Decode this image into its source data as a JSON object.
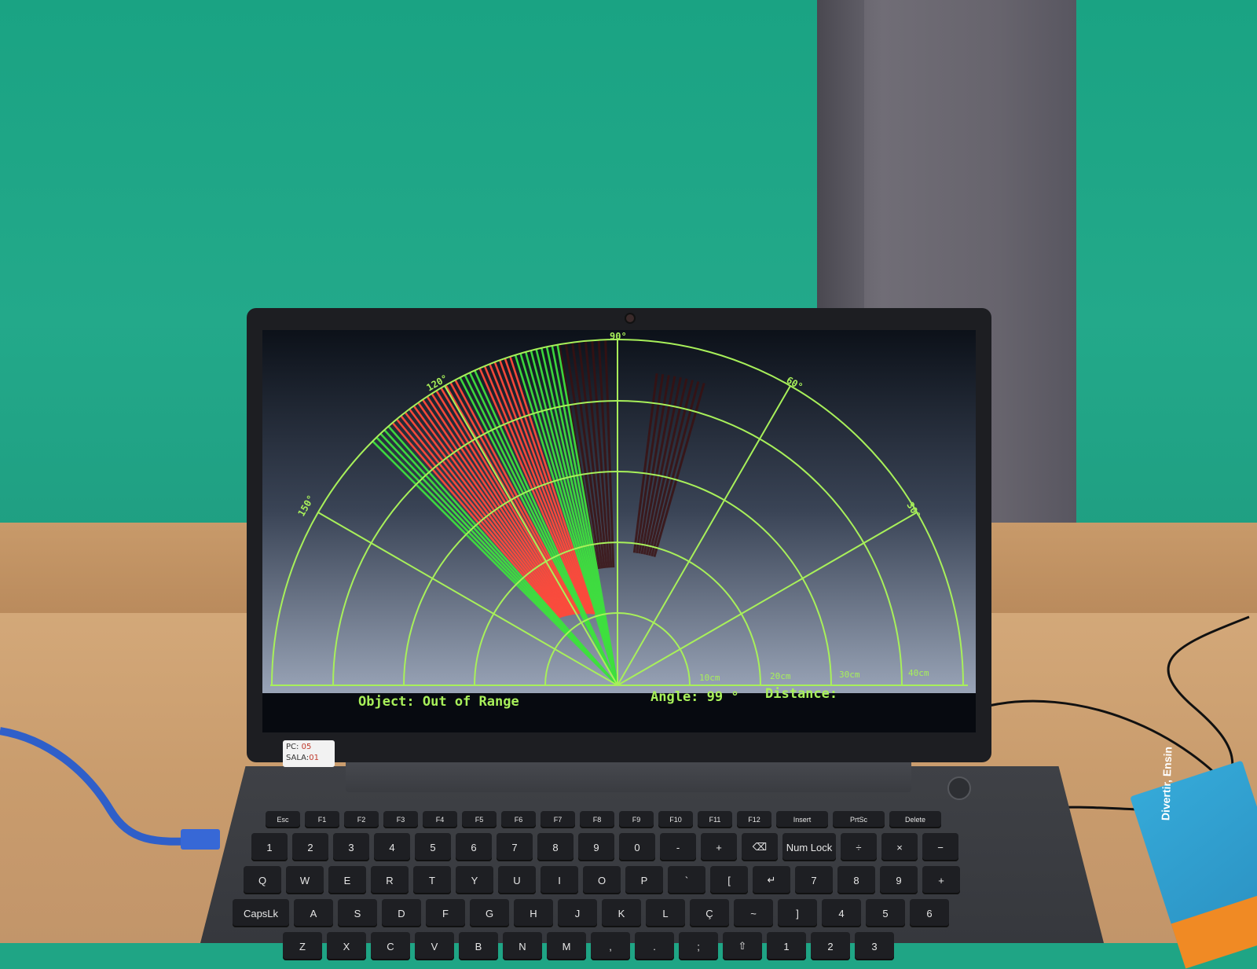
{
  "radar": {
    "angle_labels": [
      "150°",
      "120°",
      "90°",
      "60°",
      "30°"
    ],
    "distance_labels": [
      "10cm",
      "20cm",
      "30cm",
      "40cm"
    ],
    "object_label": "Object: Out of Range",
    "angle_readout": "Angle: 99 °",
    "distance_readout": "Distance:",
    "colors": {
      "grid": "#a8f05a",
      "sweep_green": "#3ee03e",
      "sweep_red": "#ff4a3a",
      "fade": "#3a1010",
      "background_top": "#0c1119",
      "background_bottom": "#aeb9cc"
    }
  },
  "sticker": {
    "pc_label": "PC:",
    "pc_value": "05",
    "room_label": "SALA:",
    "room_value": "01"
  },
  "keyboard": {
    "function_row": [
      "Esc",
      "F1",
      "F2",
      "F3",
      "F4",
      "F5",
      "F6",
      "F7",
      "F8",
      "F9",
      "F10",
      "F11",
      "F12",
      "Insert",
      "PrtSc",
      "Delete"
    ],
    "number_row": [
      "1",
      "2",
      "3",
      "4",
      "5",
      "6",
      "7",
      "8",
      "9",
      "0",
      "-",
      "+",
      "⌫",
      "Num Lock",
      "÷",
      "×",
      "−"
    ],
    "top_row": [
      "Q",
      "W",
      "E",
      "R",
      "T",
      "Y",
      "U",
      "I",
      "O",
      "P",
      "`",
      "[",
      "↵",
      "7",
      "8",
      "9",
      "+"
    ],
    "home_row": [
      "CapsLk",
      "A",
      "S",
      "D",
      "F",
      "G",
      "H",
      "J",
      "K",
      "L",
      "Ç",
      "~",
      "]",
      "4",
      "5",
      "6"
    ],
    "bottom_row": [
      "Z",
      "X",
      "C",
      "V",
      "B",
      "N",
      "M",
      ",",
      ".",
      ";",
      "⇧",
      "1",
      "2",
      "3"
    ]
  },
  "card": {
    "text": "Divertir, Ensin"
  }
}
